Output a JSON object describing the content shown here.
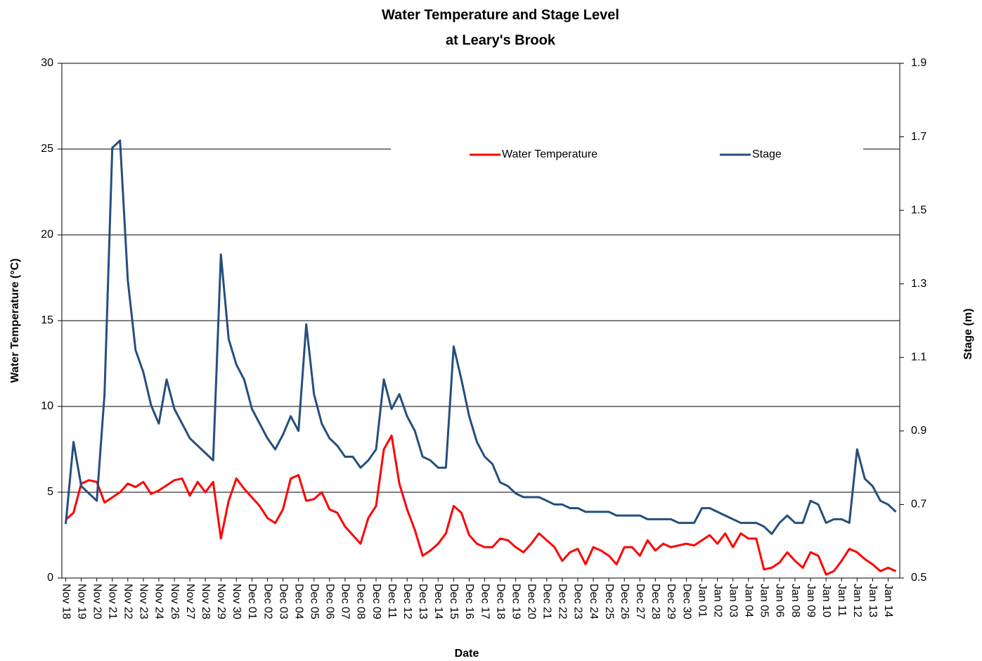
{
  "chart_data": {
    "type": "line",
    "title": "Water Temperature and Stage Level",
    "subtitle": "at Leary's Brook",
    "x_label": "Date",
    "y_label": "Water Temperature (°C)",
    "y2_label": "Stage (m)",
    "categories": [
      "Nov 18",
      null,
      "Nov 19",
      null,
      "Nov 20",
      null,
      "Nov 21",
      null,
      "Nov 22",
      null,
      "Nov 23",
      null,
      "Nov 24",
      null,
      "Nov 26",
      null,
      "Nov 27",
      null,
      "Nov 28",
      null,
      "Nov 29",
      null,
      "Nov 30",
      null,
      "Dec 01",
      null,
      "Dec 02",
      null,
      "Dec 03",
      null,
      "Dec 04",
      null,
      "Dec 05",
      null,
      "Dec 06",
      null,
      "Dec 07",
      null,
      "Dec 08",
      null,
      "Dec 09",
      null,
      "Dec 11",
      null,
      "Dec 12",
      null,
      "Dec 13",
      null,
      "Dec 14",
      null,
      "Dec 15",
      null,
      "Dec 16",
      null,
      "Dec 17",
      null,
      "Dec 18",
      null,
      "Dec 19",
      null,
      "Dec 20",
      null,
      "Dec 21",
      null,
      "Dec 22",
      null,
      "Dec 23",
      null,
      "Dec 24",
      null,
      "Dec 25",
      null,
      "Dec 26",
      null,
      "Dec 27",
      null,
      "Dec 28",
      null,
      "Dec 29",
      null,
      "Dec 30",
      null,
      "Jan 01",
      null,
      "Jan 02",
      null,
      "Jan 03",
      null,
      "Jan 04",
      null,
      "Jan 05",
      null,
      "Jan 06",
      null,
      "Jan 08",
      null,
      "Jan 09",
      null,
      "Jan 10",
      null,
      "Jan 11",
      null,
      "Jan 12",
      null,
      "Jan 13",
      null,
      "Jan 14",
      null
    ],
    "series": [
      {
        "name": "Water Temperature",
        "color": "#ff0000",
        "values": [
          3.4,
          3.8,
          5.5,
          5.7,
          5.6,
          4.4,
          4.7,
          5.0,
          5.5,
          5.3,
          5.6,
          4.9,
          5.1,
          5.4,
          5.7,
          5.8,
          4.8,
          5.6,
          5.0,
          5.6,
          2.3,
          4.5,
          5.8,
          5.2,
          4.7,
          4.2,
          3.5,
          3.2,
          4.0,
          5.8,
          6.0,
          4.5,
          4.6,
          5.0,
          4.0,
          3.8,
          3.0,
          2.5,
          2.0,
          3.5,
          4.2,
          7.5,
          8.3,
          5.5,
          4.0,
          2.8,
          1.3,
          1.6,
          2.0,
          2.6,
          4.2,
          3.8,
          2.5,
          2.0,
          1.8,
          1.8,
          2.3,
          2.2,
          1.8,
          1.5,
          2.0,
          2.6,
          2.2,
          1.8,
          1.0,
          1.5,
          1.7,
          0.8,
          1.8,
          1.6,
          1.3,
          0.8,
          1.8,
          1.8,
          1.3,
          2.2,
          1.6,
          2.0,
          1.8,
          1.9,
          2.0,
          1.9,
          2.2,
          2.5,
          2.0,
          2.6,
          1.8,
          2.6,
          2.3,
          2.3,
          0.5,
          0.6,
          0.9,
          1.5,
          1.0,
          0.6,
          1.5,
          1.3,
          0.2,
          0.4,
          1.0,
          1.7,
          1.5,
          1.1,
          0.8,
          0.4,
          0.6,
          0.4
        ]
      },
      {
        "name": "Stage",
        "color": "#254e7d",
        "axis": "y2",
        "values": [
          0.647,
          0.87,
          0.75,
          0.73,
          0.71,
          1.0,
          1.67,
          1.69,
          1.31,
          1.12,
          1.06,
          0.97,
          0.92,
          1.04,
          0.96,
          0.92,
          0.88,
          0.86,
          0.84,
          0.82,
          1.38,
          1.15,
          1.08,
          1.04,
          0.96,
          0.92,
          0.88,
          0.85,
          0.89,
          0.94,
          0.9,
          1.19,
          1.0,
          0.92,
          0.88,
          0.86,
          0.83,
          0.83,
          0.8,
          0.82,
          0.85,
          1.04,
          0.96,
          1.0,
          0.94,
          0.9,
          0.83,
          0.82,
          0.8,
          0.8,
          1.13,
          1.04,
          0.94,
          0.87,
          0.83,
          0.81,
          0.76,
          0.75,
          0.73,
          0.72,
          0.72,
          0.72,
          0.71,
          0.7,
          0.7,
          0.69,
          0.69,
          0.68,
          0.68,
          0.68,
          0.68,
          0.67,
          0.67,
          0.67,
          0.67,
          0.66,
          0.66,
          0.66,
          0.66,
          0.65,
          0.65,
          0.65,
          0.69,
          0.69,
          0.68,
          0.67,
          0.66,
          0.65,
          0.65,
          0.65,
          0.64,
          0.62,
          0.65,
          0.67,
          0.65,
          0.65,
          0.71,
          0.7,
          0.65,
          0.66,
          0.66,
          0.65,
          0.85,
          0.77,
          0.75,
          0.71,
          0.7,
          0.68
        ]
      }
    ],
    "ylim": [
      0,
      30
    ],
    "yticks": [
      0,
      5,
      10,
      15,
      20,
      25,
      30
    ],
    "y2lim": [
      0.5,
      1.9
    ],
    "y2ticks": [
      0.5,
      0.7,
      0.9,
      1.1,
      1.3,
      1.5,
      1.7,
      1.9
    ],
    "grid": true
  }
}
